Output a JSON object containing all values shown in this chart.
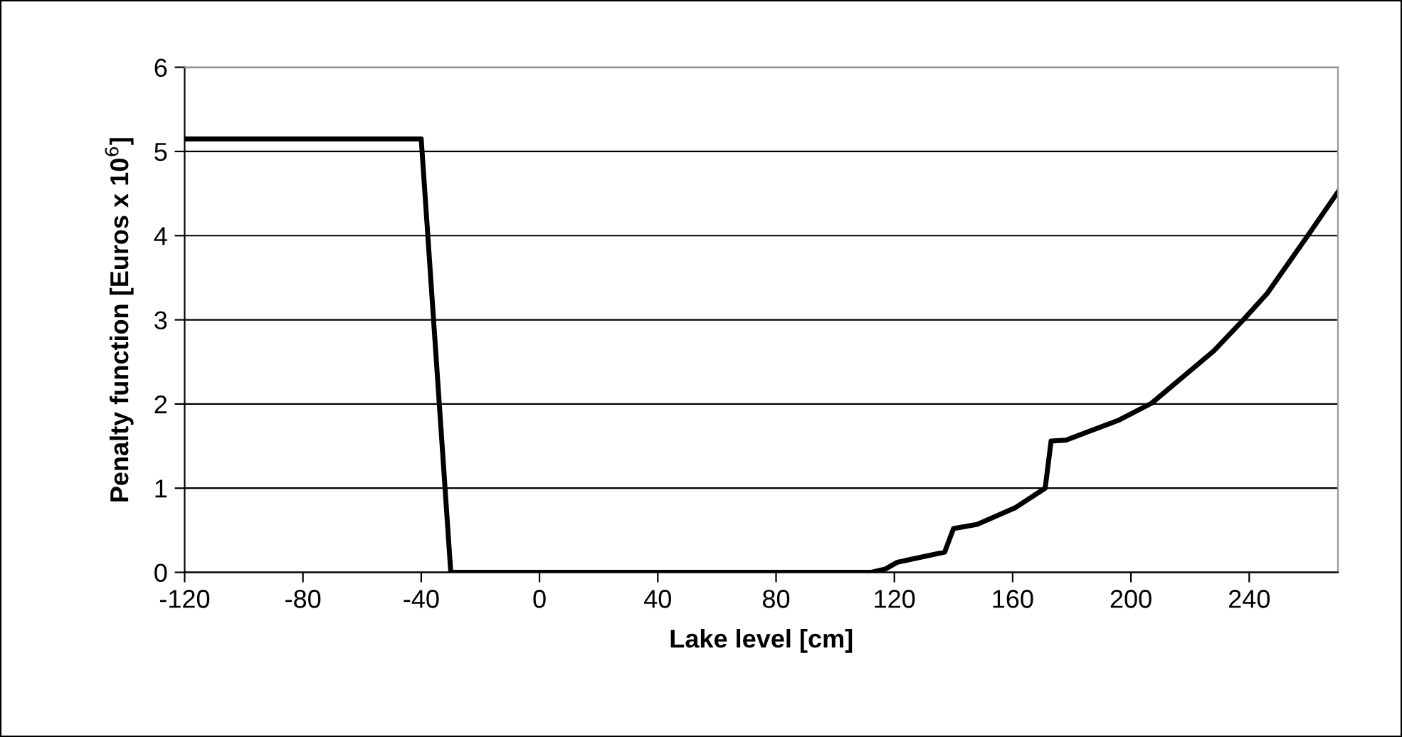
{
  "chart_data": {
    "type": "line",
    "xlabel": "Lake level [cm]",
    "ylabel": "Penalty function [Euros x 10$^{6}$]",
    "xlim": [
      -120,
      270
    ],
    "xticks": [
      -120,
      -80,
      -40,
      0,
      40,
      80,
      120,
      160,
      200,
      240
    ],
    "ylim": [
      0,
      6
    ],
    "yticks": [
      0,
      1,
      2,
      3,
      4,
      5,
      6
    ],
    "grid": "y",
    "marker": "none",
    "line_style": "solid",
    "series": [
      {
        "color": "#000000",
        "x": [
          -120,
          -40,
          -30,
          0,
          40,
          80,
          112,
          117,
          121,
          137,
          140,
          148,
          161,
          171,
          173,
          178,
          196,
          207,
          228,
          238,
          246,
          260,
          270
        ],
        "values": [
          5.15,
          5.15,
          0,
          0,
          0,
          0,
          0,
          0.04,
          0.12,
          0.24,
          0.52,
          0.57,
          0.77,
          1.0,
          1.56,
          1.57,
          1.81,
          2.01,
          2.63,
          3.0,
          3.31,
          4.01,
          4.52
        ]
      }
    ]
  }
}
